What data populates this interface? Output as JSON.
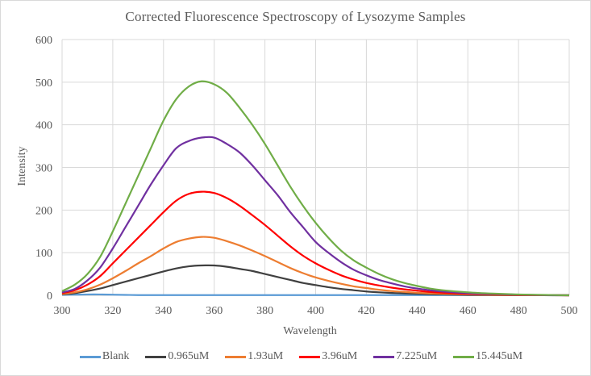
{
  "chart_data": {
    "type": "line",
    "title": "Corrected Fluorescence  Spectroscopy of Lysozyme  Samples",
    "xlabel": "Wavelength",
    "ylabel": "Intensity",
    "xlim": [
      300,
      500
    ],
    "ylim": [
      0,
      600
    ],
    "xticks": [
      300,
      320,
      340,
      360,
      380,
      400,
      420,
      440,
      460,
      480,
      500
    ],
    "yticks": [
      0,
      100,
      200,
      300,
      400,
      500,
      600
    ],
    "grid": true,
    "legend": "bottom",
    "x": [
      300,
      305,
      310,
      315,
      320,
      325,
      330,
      335,
      340,
      345,
      350,
      355,
      360,
      365,
      370,
      375,
      380,
      385,
      390,
      395,
      400,
      405,
      410,
      415,
      420,
      425,
      430,
      435,
      440,
      445,
      450,
      460,
      470,
      480,
      490,
      500
    ],
    "series": [
      {
        "name": "Blank",
        "color": "#5b9bd5",
        "values": [
          1,
          1.5,
          2,
          2,
          1.5,
          1,
          0.5,
          0.5,
          0.5,
          0.5,
          0.5,
          0.5,
          0.5,
          0.5,
          0.5,
          0.5,
          0.5,
          0.5,
          0.5,
          0.5,
          0.5,
          0.5,
          0.5,
          0.5,
          0.5,
          0.5,
          0.5,
          0.5,
          0.5,
          0.5,
          0.5,
          0.5,
          0.5,
          0.5,
          0.5,
          0.5
        ]
      },
      {
        "name": "0.965uM",
        "color": "#404040",
        "values": [
          2,
          5,
          10,
          16,
          24,
          32,
          40,
          48,
          56,
          63,
          68,
          70,
          70,
          67,
          62,
          57,
          50,
          43,
          36,
          29,
          24,
          19,
          15,
          12,
          9,
          7,
          5.5,
          4.5,
          3.5,
          2.5,
          2,
          1,
          0.5,
          0.3,
          0.1,
          0
        ]
      },
      {
        "name": "1.93uM",
        "color": "#ed7d31",
        "values": [
          3,
          7,
          14,
          25,
          40,
          57,
          75,
          92,
          110,
          125,
          133,
          137,
          135,
          127,
          117,
          105,
          92,
          78,
          64,
          52,
          42,
          34,
          27,
          21,
          17,
          13,
          10,
          8,
          6,
          4.5,
          3.5,
          2,
          1,
          0.5,
          0.2,
          0
        ]
      },
      {
        "name": "3.96uM",
        "color": "#ff0000",
        "values": [
          5,
          12,
          25,
          45,
          75,
          105,
          135,
          165,
          195,
          222,
          238,
          243,
          240,
          228,
          210,
          188,
          165,
          140,
          115,
          93,
          75,
          60,
          47,
          37,
          29,
          23,
          18,
          14,
          11,
          8,
          6,
          3.5,
          2,
          1,
          0.5,
          0
        ]
      },
      {
        "name": "7.225uM",
        "color": "#7030a0",
        "values": [
          7,
          15,
          35,
          65,
          110,
          160,
          210,
          260,
          305,
          345,
          362,
          370,
          370,
          355,
          335,
          305,
          270,
          235,
          195,
          160,
          125,
          100,
          78,
          60,
          47,
          36,
          28,
          21,
          16,
          12,
          9,
          5,
          3,
          1.5,
          0.5,
          0
        ]
      },
      {
        "name": "15.445uM",
        "color": "#70ad47",
        "values": [
          10,
          25,
          50,
          90,
          150,
          215,
          280,
          345,
          410,
          460,
          490,
          502,
          495,
          475,
          440,
          400,
          355,
          305,
          255,
          210,
          170,
          135,
          105,
          82,
          65,
          50,
          38,
          29,
          22,
          16,
          12,
          7,
          4,
          2,
          1,
          0
        ]
      }
    ]
  }
}
